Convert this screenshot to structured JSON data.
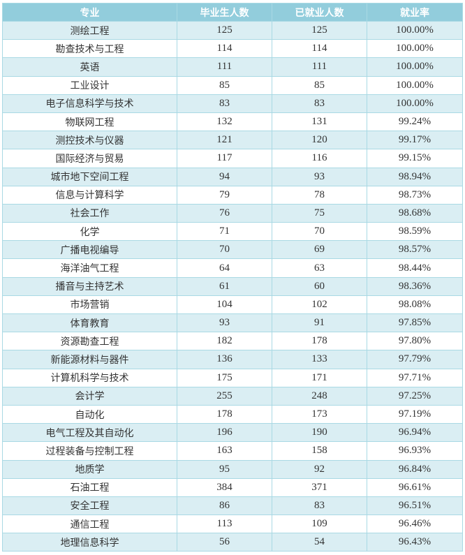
{
  "table": {
    "headers": [
      "专业",
      "毕业生人数",
      "已就业人数",
      "就业率"
    ],
    "colors": {
      "header_bg": "#92cddc",
      "header_text": "#ffffff",
      "row_alt_bg": "#daeef3",
      "row_bg": "#ffffff",
      "border": "#a9d9e4"
    },
    "rows": [
      [
        "测绘工程",
        "125",
        "125",
        "100.00%"
      ],
      [
        "勘查技术与工程",
        "114",
        "114",
        "100.00%"
      ],
      [
        "英语",
        "111",
        "111",
        "100.00%"
      ],
      [
        "工业设计",
        "85",
        "85",
        "100.00%"
      ],
      [
        "电子信息科学与技术",
        "83",
        "83",
        "100.00%"
      ],
      [
        "物联网工程",
        "132",
        "131",
        "99.24%"
      ],
      [
        "测控技术与仪器",
        "121",
        "120",
        "99.17%"
      ],
      [
        "国际经济与贸易",
        "117",
        "116",
        "99.15%"
      ],
      [
        "城市地下空间工程",
        "94",
        "93",
        "98.94%"
      ],
      [
        "信息与计算科学",
        "79",
        "78",
        "98.73%"
      ],
      [
        "社会工作",
        "76",
        "75",
        "98.68%"
      ],
      [
        "化学",
        "71",
        "70",
        "98.59%"
      ],
      [
        "广播电视编导",
        "70",
        "69",
        "98.57%"
      ],
      [
        "海洋油气工程",
        "64",
        "63",
        "98.44%"
      ],
      [
        "播音与主持艺术",
        "61",
        "60",
        "98.36%"
      ],
      [
        "市场营销",
        "104",
        "102",
        "98.08%"
      ],
      [
        "体育教育",
        "93",
        "91",
        "97.85%"
      ],
      [
        "资源勘查工程",
        "182",
        "178",
        "97.80%"
      ],
      [
        "新能源材料与器件",
        "136",
        "133",
        "97.79%"
      ],
      [
        "计算机科学与技术",
        "175",
        "171",
        "97.71%"
      ],
      [
        "会计学",
        "255",
        "248",
        "97.25%"
      ],
      [
        "自动化",
        "178",
        "173",
        "97.19%"
      ],
      [
        "电气工程及其自动化",
        "196",
        "190",
        "96.94%"
      ],
      [
        "过程装备与控制工程",
        "163",
        "158",
        "96.93%"
      ],
      [
        "地质学",
        "95",
        "92",
        "96.84%"
      ],
      [
        "石油工程",
        "384",
        "371",
        "96.61%"
      ],
      [
        "安全工程",
        "86",
        "83",
        "96.51%"
      ],
      [
        "通信工程",
        "113",
        "109",
        "96.46%"
      ],
      [
        "地理信息科学",
        "56",
        "54",
        "96.43%"
      ]
    ]
  }
}
